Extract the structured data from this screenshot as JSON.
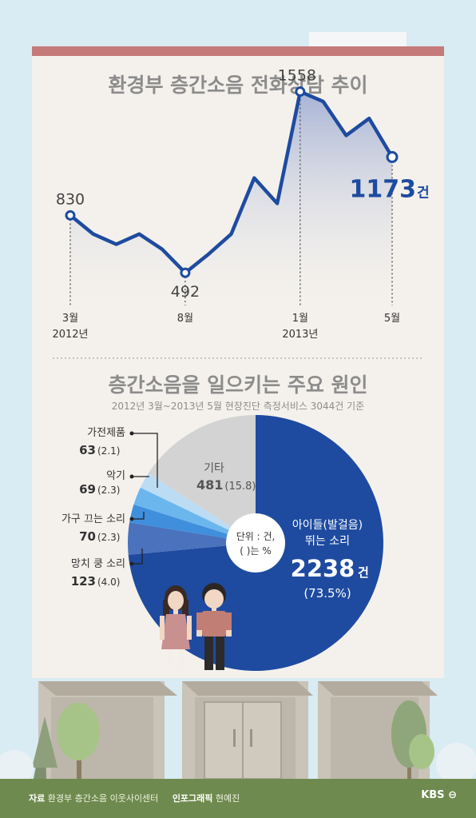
{
  "colors": {
    "sky": "#d9ebf3",
    "panel": "#f4f1ec",
    "top_bar": "#c47a79",
    "accent_blue": "#1e4ba0",
    "title_gray": "#8c8c8c",
    "ground": "#6f8a4e"
  },
  "chart_data": [
    {
      "type": "line",
      "title": "환경부 층간소음 전화상담 추이",
      "x": [
        "2012-03",
        "2012-04",
        "2012-05",
        "2012-06",
        "2012-07",
        "2012-08",
        "2012-09",
        "2012-10",
        "2012-11",
        "2012-12",
        "2013-01",
        "2013-02",
        "2013-03",
        "2013-04",
        "2013-05"
      ],
      "values": [
        830,
        720,
        660,
        720,
        630,
        492,
        600,
        720,
        1050,
        900,
        1558,
        1500,
        1300,
        1400,
        1173
      ],
      "ylim": [
        300,
        1650
      ],
      "tick_labels": [
        {
          "label": "3월",
          "sub": "2012년"
        },
        {
          "label": "8월",
          "sub": ""
        },
        {
          "label": "1월",
          "sub": "2013년"
        },
        {
          "label": "5월",
          "sub": ""
        }
      ],
      "annotations": {
        "start_value": "830",
        "min_value": "492",
        "max_value": "1558",
        "end_value": "1173",
        "end_unit": "건"
      },
      "grid": false
    },
    {
      "type": "pie",
      "title": "층간소음을 일으키는 주요 원인",
      "subtitle": "2012년 3월~2013년 5월 현장진단 측정서비스 3044건 기준",
      "unit_note": [
        "단위 : 건,",
        "(  )는 %"
      ],
      "slices": [
        {
          "label": "아이들(발걸음) 뛰는 소리",
          "label_lines": [
            "아이들(발걸음)",
            "뛰는 소리"
          ],
          "value": 2238,
          "value_text": "2238",
          "unit": "건",
          "percent": 73.5,
          "percent_text": "(73.5%)",
          "color": "#1e4ba0"
        },
        {
          "label": "망치 쿵 소리",
          "value": 123,
          "value_text": "123",
          "percent": 4.0,
          "percent_text": "(4.0)",
          "color": "#4a72bd"
        },
        {
          "label": "가구 끄는 소리",
          "value": 70,
          "value_text": "70",
          "percent": 2.3,
          "percent_text": "(2.3)",
          "color": "#3f8fdc"
        },
        {
          "label": "악기",
          "value": 69,
          "value_text": "69",
          "percent": 2.3,
          "percent_text": "(2.3)",
          "color": "#6cb6ee"
        },
        {
          "label": "가전제품",
          "value": 63,
          "value_text": "63",
          "percent": 2.1,
          "percent_text": "(2.1)",
          "color": "#bcdcf4"
        },
        {
          "label": "기타",
          "value": 481,
          "value_text": "481",
          "percent": 15.8,
          "percent_text": "(15.8)",
          "color": "#d3d3d3"
        }
      ]
    }
  ],
  "footer": {
    "source_key": "자료",
    "source_value": "환경부 층간소음 이웃사이센터",
    "credit_key": "인포그래픽",
    "credit_value": "현예진",
    "logo": "KBS"
  }
}
